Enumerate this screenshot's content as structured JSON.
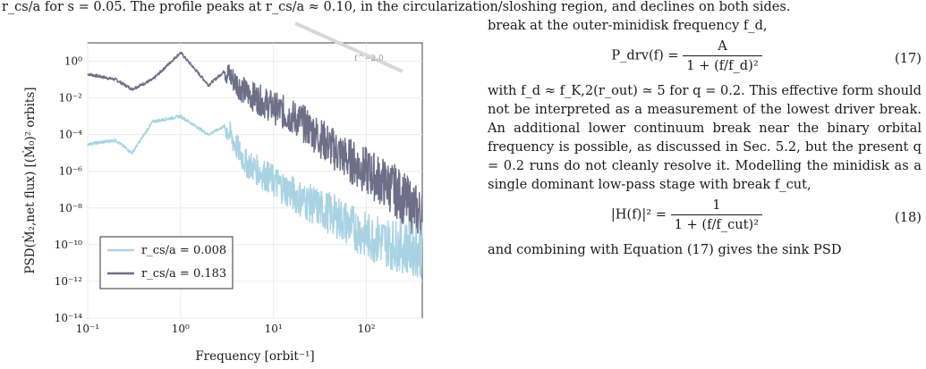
{
  "caption_tail": "r_cs/a for s = 0.05. The profile peaks at r_cs/a ≈ 0.10, in the circularization/sloshing region, and declines on both sides.",
  "figure": {
    "ylabel": "PSD(Ṁ₂,net flux) [(Ṁ₀)² orbits]",
    "xlabel": "Frequency [orbit⁻¹]",
    "slope_label": "f^−2.0",
    "legend": [
      {
        "label": "r_cs/a = 0.008",
        "color": "#a9d3e3"
      },
      {
        "label": "r_cs/a = 0.183",
        "color": "#6e6e88"
      }
    ],
    "xticks": [
      "10⁻¹",
      "10⁰",
      "10¹",
      "10²"
    ],
    "yticks": [
      "10⁰",
      "10⁻²",
      "10⁻⁴",
      "10⁻⁶",
      "10⁻⁸",
      "10⁻¹⁰",
      "10⁻¹²",
      "10⁻¹⁴"
    ]
  },
  "chart_data": {
    "type": "line",
    "xlabel": "Frequency [orbit⁻¹]",
    "ylabel": "PSD(Ṁ₂,net flux) [(Ṁ₀)² orbits]",
    "xscale": "log",
    "yscale": "log",
    "xlim": [
      0.1,
      400
    ],
    "ylim": [
      1e-14,
      10
    ],
    "grid": true,
    "legend_position": "bottom-left",
    "reference_line": {
      "label": "f^−2.0",
      "slope": -2.0
    },
    "series": [
      {
        "name": "r_cs/a = 0.008",
        "color": "#a9d3e3",
        "x": [
          0.1,
          0.2,
          0.3,
          0.5,
          1.0,
          2.0,
          3.0,
          5.0,
          10,
          20,
          50,
          100,
          200,
          400
        ],
        "y": [
          3e-05,
          5e-05,
          1e-05,
          0.0005,
          0.001,
          0.0001,
          0.0003,
          3e-06,
          3e-07,
          3e-08,
          3e-09,
          3e-10,
          1e-10,
          5e-11
        ]
      },
      {
        "name": "r_cs/a = 0.183",
        "color": "#6e6e88",
        "x": [
          0.1,
          0.2,
          0.3,
          0.5,
          1.0,
          2.0,
          3.0,
          5.0,
          10,
          20,
          50,
          100,
          200,
          400
        ],
        "y": [
          0.2,
          0.1,
          0.03,
          0.1,
          3.0,
          0.05,
          0.3,
          0.02,
          0.003,
          0.0005,
          1e-05,
          1e-06,
          1e-07,
          3e-09
        ]
      }
    ]
  },
  "text": {
    "p1": "break at the outer-minidisk frequency f_d,",
    "eq17_lhs": "P_drv(f) =",
    "eq17_num": "A",
    "eq17_den": "1 + (f/f_d)²",
    "eq17_tag": "(17)",
    "p2": "with f_d ≈ f_K,2(r_out) ≃ 5 for q = 0.2. This effective form should not be interpreted as a measurement of the lowest driver break. An additional lower continuum break near the binary orbital frequency is possible, as discussed in Sec. 5.2, but the present q = 0.2 runs do not cleanly resolve it. Modelling the minidisk as a single dominant low-pass stage with break f_cut,",
    "eq18_lhs": "|H(f)|² =",
    "eq18_num": "1",
    "eq18_den": "1 + (f/f_cut)²",
    "eq18_tag": "(18)",
    "p3": "and combining with Equation (17) gives the sink PSD"
  }
}
